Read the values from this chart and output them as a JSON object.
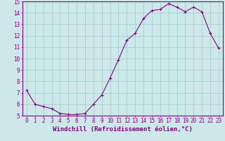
{
  "x": [
    0,
    1,
    2,
    3,
    4,
    5,
    6,
    7,
    8,
    9,
    10,
    11,
    12,
    13,
    14,
    15,
    16,
    17,
    18,
    19,
    20,
    21,
    22,
    23
  ],
  "y": [
    7.2,
    6.0,
    5.8,
    5.6,
    5.2,
    5.1,
    5.1,
    5.2,
    6.0,
    6.8,
    8.3,
    9.9,
    11.6,
    12.2,
    13.5,
    14.2,
    14.3,
    14.8,
    14.5,
    14.1,
    14.5,
    14.1,
    12.2,
    10.9
  ],
  "ylim": [
    5,
    15
  ],
  "yticks": [
    5,
    6,
    7,
    8,
    9,
    10,
    11,
    12,
    13,
    14,
    15
  ],
  "xticks": [
    0,
    1,
    2,
    3,
    4,
    5,
    6,
    7,
    8,
    9,
    10,
    11,
    12,
    13,
    14,
    15,
    16,
    17,
    18,
    19,
    20,
    21,
    22,
    23
  ],
  "xlabel": "Windchill (Refroidissement éolien,°C)",
  "line_color": "#880088",
  "marker": "+",
  "bg_color": "#cce8e8",
  "grid_color": "#99cccc",
  "tick_label_fontsize": 5.5,
  "xlabel_fontsize": 6.5
}
